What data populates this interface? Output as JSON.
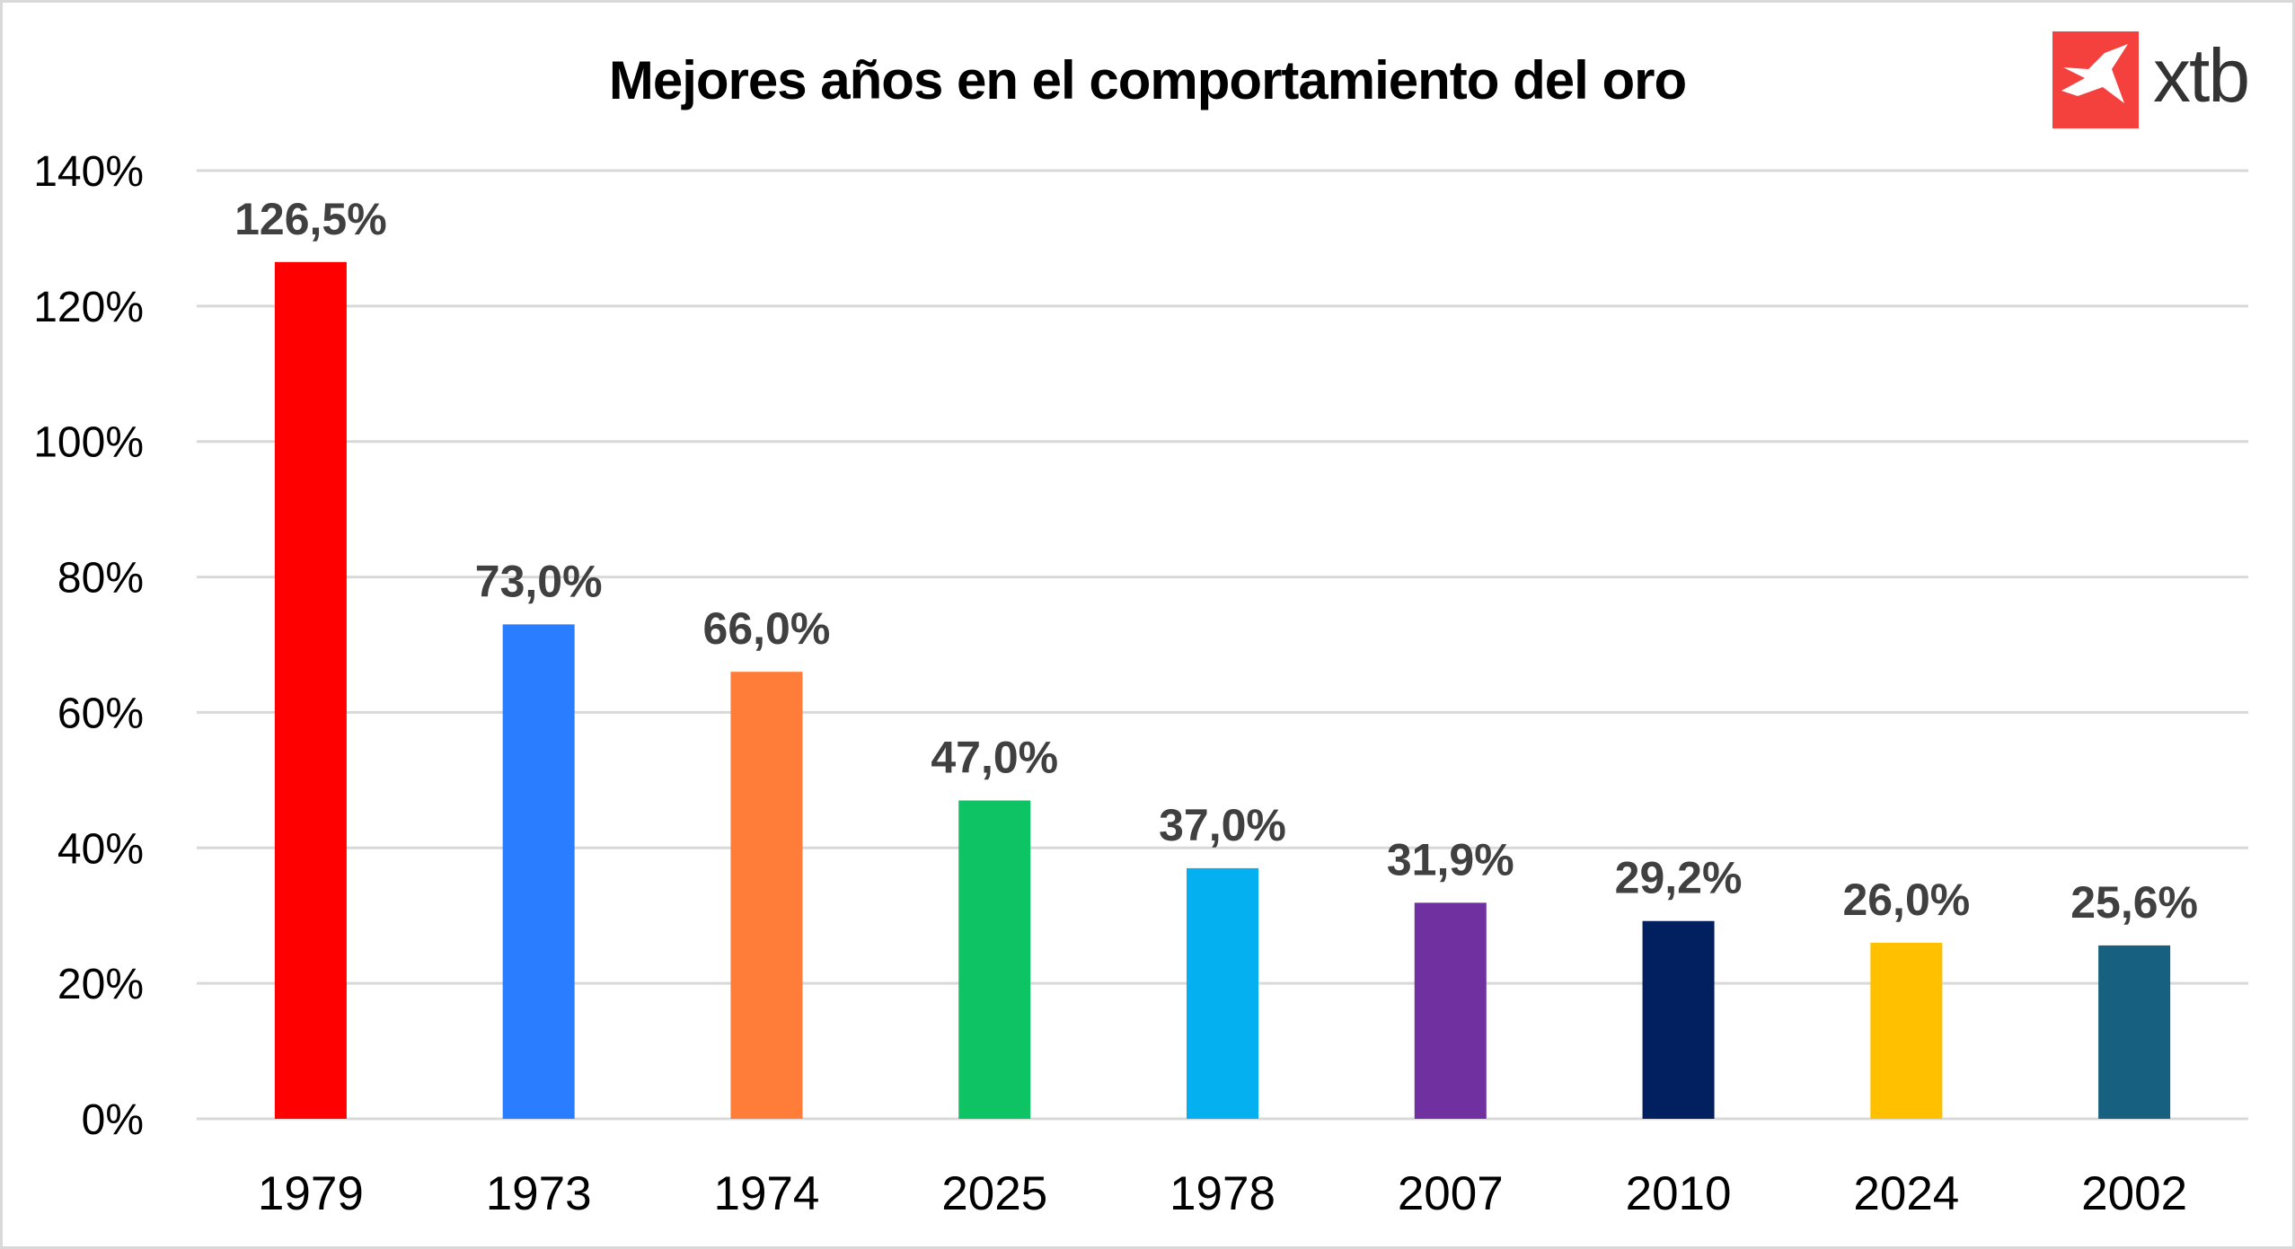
{
  "header": {
    "title": "Mejores años en el comportamiento del oro",
    "logo_text": "xtb",
    "logo_icon": "xtb-x-mark-icon",
    "logo_color": "#f4413d"
  },
  "chart_data": {
    "type": "bar",
    "title": "Mejores años en el comportamiento del oro",
    "xlabel": "",
    "ylabel": "",
    "categories": [
      "1979",
      "1973",
      "1974",
      "2025",
      "1978",
      "2007",
      "2010",
      "2024",
      "2002"
    ],
    "values": [
      126.5,
      73.0,
      66.0,
      47.0,
      37.0,
      31.9,
      29.2,
      26.0,
      25.6
    ],
    "data_labels": [
      "126,5%",
      "73,0%",
      "66,0%",
      "47,0%",
      "37,0%",
      "31,9%",
      "29,2%",
      "26,0%",
      "25,6%"
    ],
    "colors": [
      "#ff0000",
      "#2b7dff",
      "#ff7d39",
      "#0ec364",
      "#04b0f0",
      "#7030a0",
      "#02205f",
      "#ffc000",
      "#18607f"
    ],
    "ylim": [
      0,
      140
    ],
    "yticks": [
      0,
      20,
      40,
      60,
      80,
      100,
      120,
      140
    ],
    "ytick_labels": [
      "0%",
      "20%",
      "40%",
      "60%",
      "80%",
      "100%",
      "120%",
      "140%"
    ],
    "grid": true,
    "legend": "none",
    "gridline_color": "#d9d9d9",
    "data_label_color": "#404040"
  }
}
